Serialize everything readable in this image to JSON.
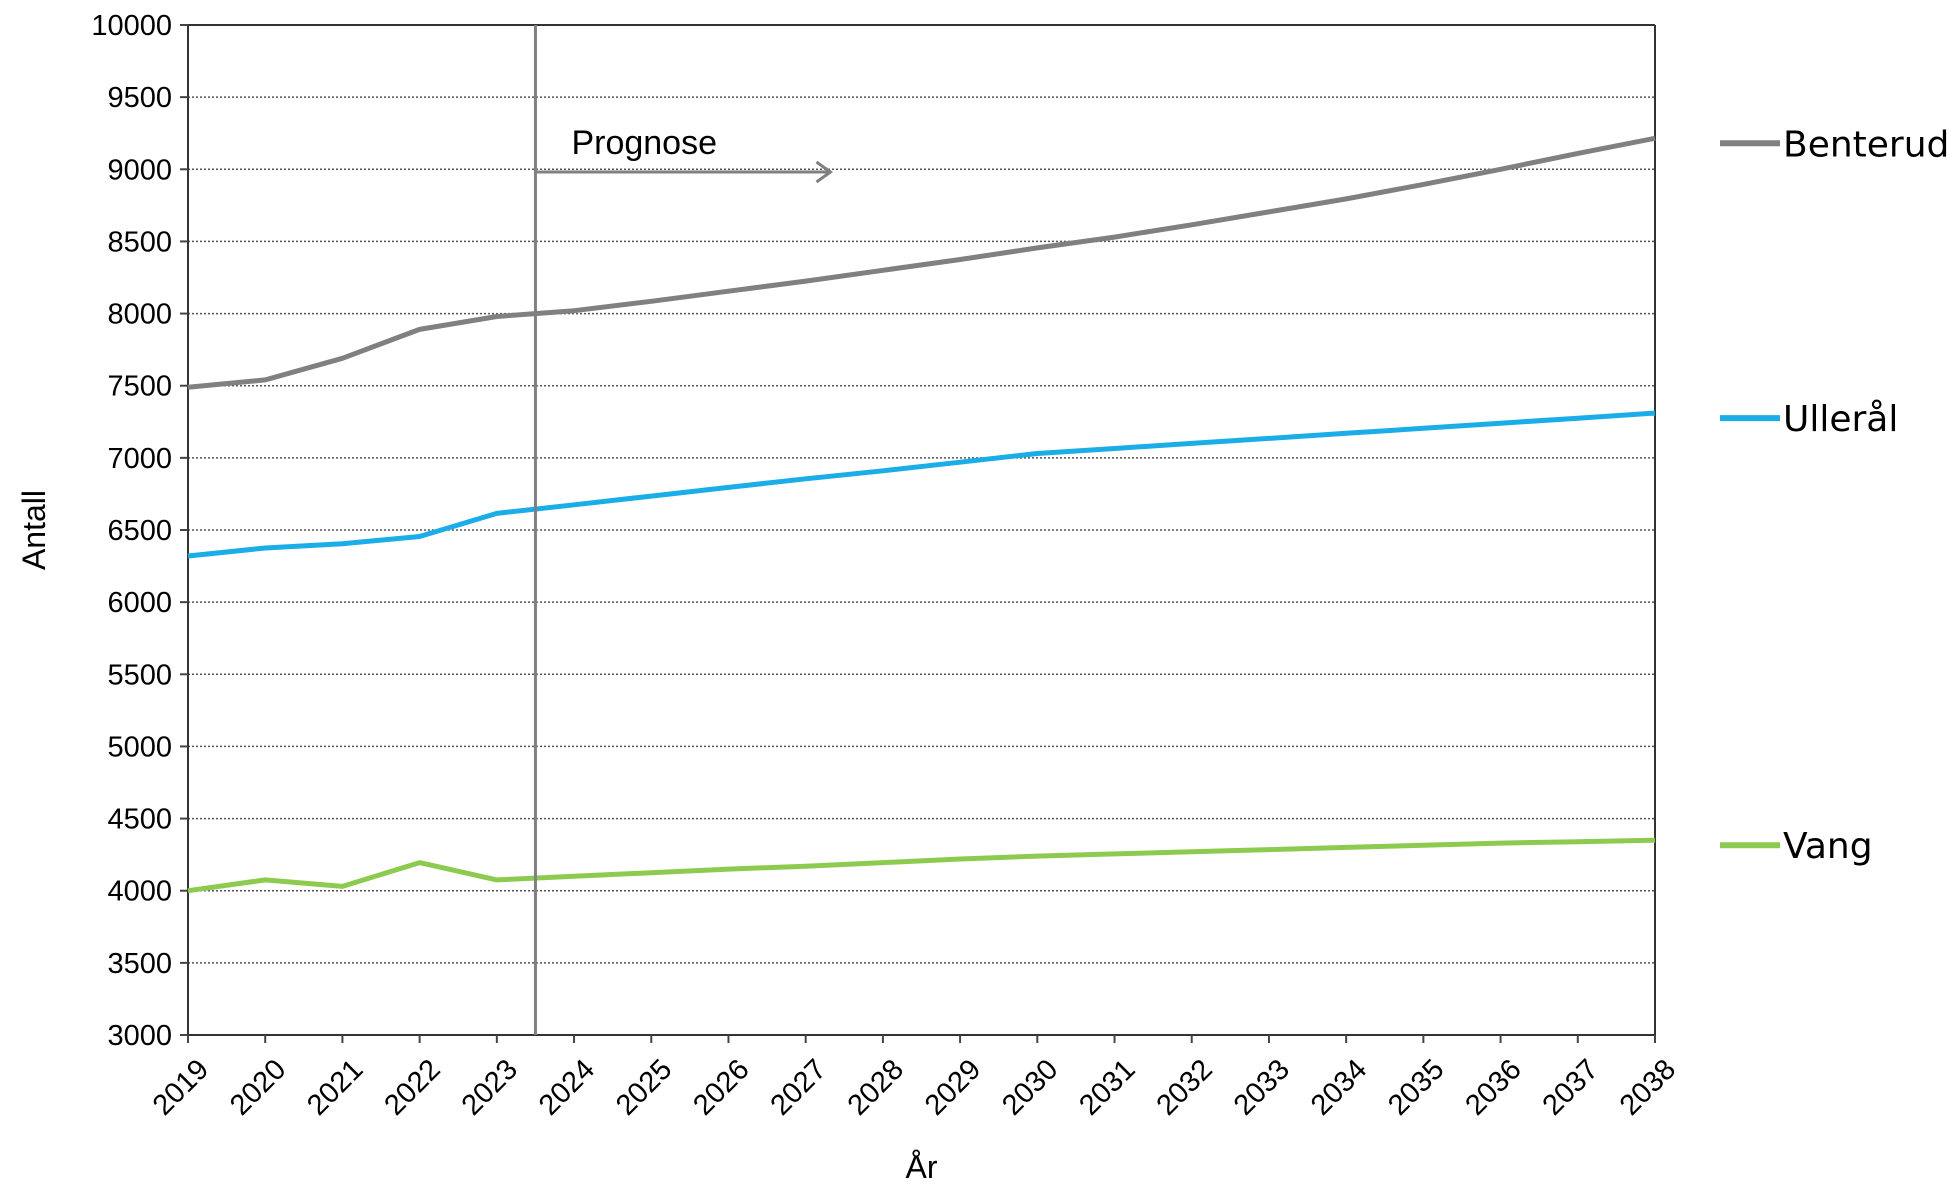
{
  "chart_data": {
    "type": "line",
    "xlabel": "År",
    "ylabel": "Antall",
    "ylim": [
      3000,
      10000
    ],
    "y_ticks": [
      3000,
      3500,
      4000,
      4500,
      5000,
      5500,
      6000,
      6500,
      7000,
      7500,
      8000,
      8500,
      9000,
      9500,
      10000
    ],
    "x": [
      "2019",
      "2020",
      "2021",
      "2022",
      "2023",
      "2024",
      "2025",
      "2026",
      "2027",
      "2028",
      "2029",
      "2030",
      "2031",
      "2032",
      "2033",
      "2034",
      "2035",
      "2036",
      "2037",
      "2038"
    ],
    "grid": "horizontal dotted",
    "legend_position": "right",
    "annotation": {
      "text": "Prognose",
      "at_x": 2023.5
    },
    "series": [
      {
        "name": "Benterud",
        "color": "#808080",
        "values": [
          7490,
          7540,
          7690,
          7890,
          7980,
          8020,
          8085,
          8155,
          8225,
          8300,
          8375,
          8455,
          8530,
          8615,
          8705,
          8795,
          8895,
          9000,
          9110,
          9215
        ]
      },
      {
        "name": "Ullerål",
        "color": "#1BADE8",
        "values": [
          6320,
          6375,
          6405,
          6455,
          6615,
          6675,
          6735,
          6795,
          6855,
          6910,
          6970,
          7030,
          7065,
          7100,
          7135,
          7170,
          7205,
          7240,
          7275,
          7310
        ]
      },
      {
        "name": "Vang",
        "color": "#8CCB4F",
        "values": [
          4000,
          4075,
          4030,
          4195,
          4075,
          4100,
          4125,
          4150,
          4170,
          4195,
          4220,
          4240,
          4255,
          4270,
          4285,
          4300,
          4315,
          4330,
          4340,
          4350
        ]
      }
    ]
  }
}
